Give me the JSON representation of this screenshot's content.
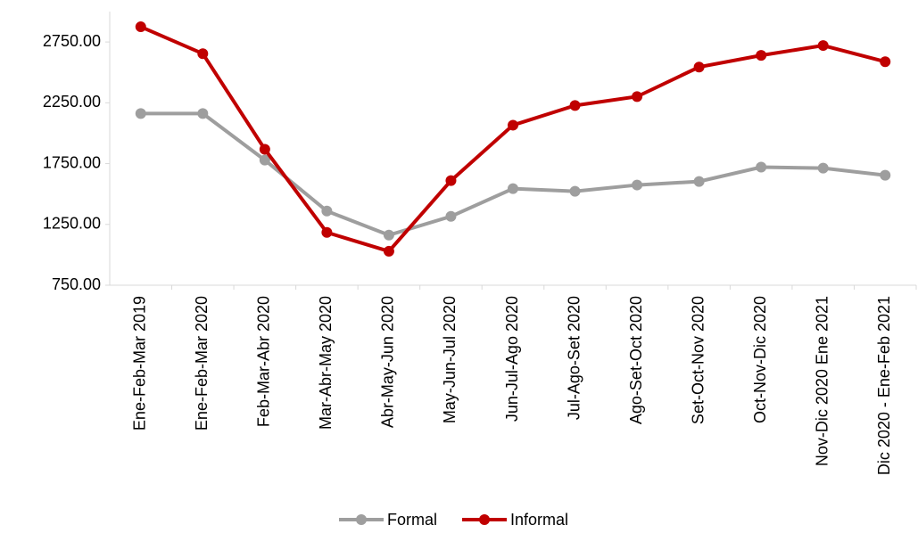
{
  "chart_data": {
    "type": "line",
    "categories": [
      "Ene-Feb-Mar 2019",
      "Ene-Feb-Mar 2020",
      "Feb-Mar-Abr 2020",
      "Mar-Abr-May 2020",
      "Abr-May-Jun 2020",
      "May-Jun-Jul 2020",
      "Jun-Jul-Ago 2020",
      "Jul-Ago-Set 2020",
      "Ago-Set-Oct 2020",
      "Set-Oct-Nov 2020",
      "Oct-Nov-Dic 2020",
      "Nov-Dic 2020 Ene 2021",
      "Dic 2020 - Ene-Feb 2021"
    ],
    "series": [
      {
        "name": "Formal",
        "color": "#9e9e9e",
        "values": [
          2162,
          2162,
          1779,
          1360,
          1162,
          1316,
          1544,
          1522,
          1574,
          1603,
          1721,
          1713,
          1654
        ]
      },
      {
        "name": "Informal",
        "color": "#c00000",
        "values": [
          2875,
          2654,
          1868,
          1184,
          1029,
          1610,
          2066,
          2228,
          2301,
          2544,
          2640,
          2721,
          2588
        ]
      }
    ],
    "ylim": [
      750,
      3000
    ],
    "yticks": [
      {
        "value": 750,
        "label": "750.00"
      },
      {
        "value": 1250,
        "label": "1250.00"
      },
      {
        "value": 1750,
        "label": "1750.00"
      },
      {
        "value": 2250,
        "label": "2250.00"
      },
      {
        "value": 2750,
        "label": "2750.00"
      }
    ],
    "legend": "bottom"
  }
}
